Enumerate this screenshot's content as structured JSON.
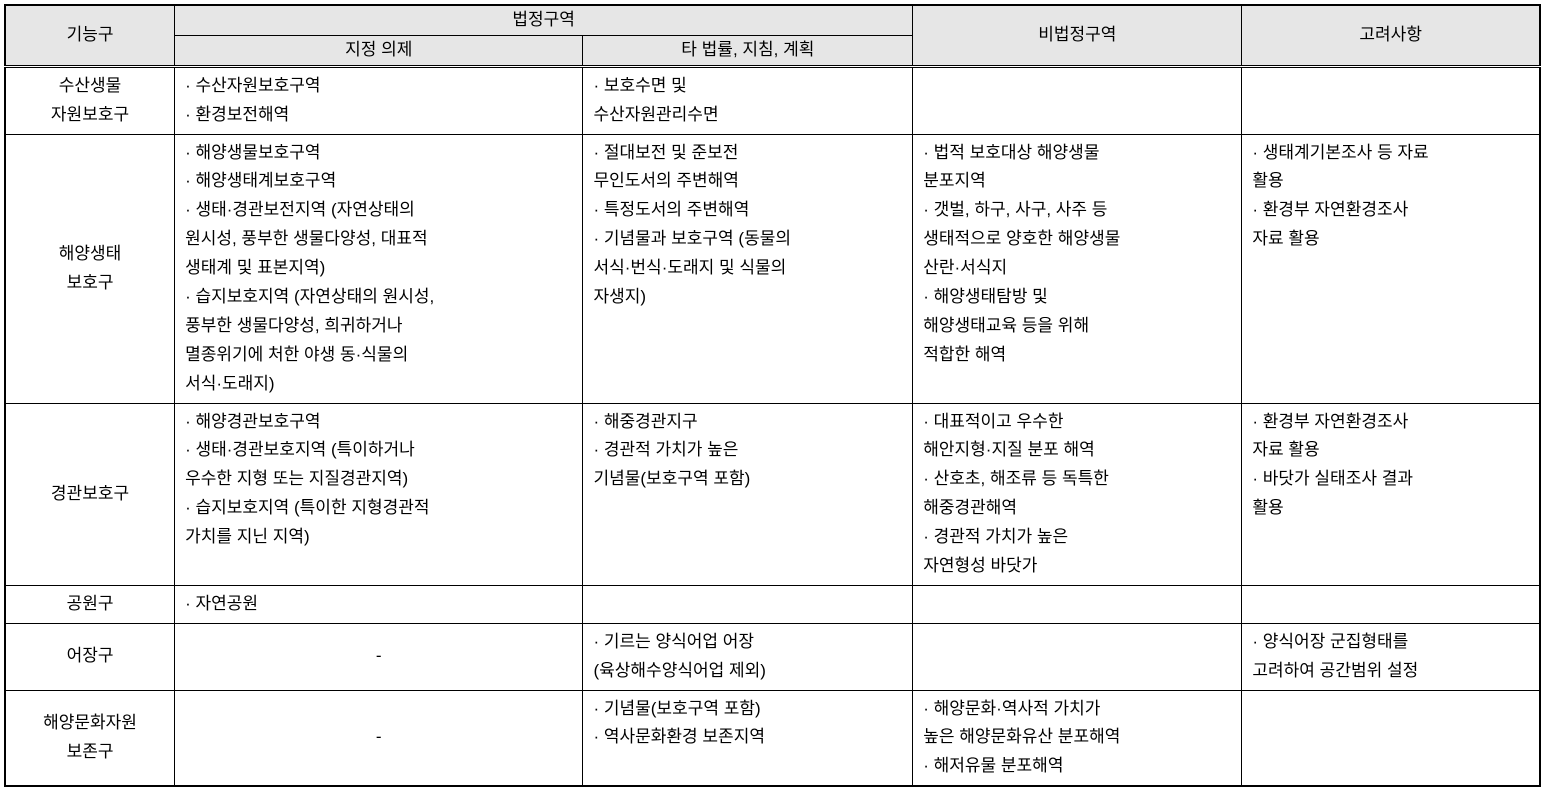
{
  "table": {
    "header": {
      "col1": "기능구",
      "col2_group": "법정구역",
      "col2a": "지정 의제",
      "col2b": "타 법률, 지침, 계획",
      "col3": "비법정구역",
      "col4": "고려사항"
    },
    "rows": {
      "row1": {
        "label": "수산생물\n자원보호구",
        "c1": "· 수산자원보호구역\n· 환경보전해역",
        "c2": "· 보호수면 및\n수산자원관리수면",
        "c3": "",
        "c4": ""
      },
      "row2": {
        "label": "해양생태\n보호구",
        "c1": "· 해양생물보호구역\n· 해양생태계보호구역\n· 생태·경관보전지역 (자연상태의\n  원시성, 풍부한 생물다양성, 대표적\n  생태계 및 표본지역)\n· 습지보호지역 (자연상태의 원시성,\n  풍부한 생물다양성, 희귀하거나\n  멸종위기에 처한 야생 동·식물의\n  서식·도래지)",
        "c2": "· 절대보전 및 준보전\n  무인도서의 주변해역\n· 특정도서의 주변해역\n· 기념물과 보호구역 (동물의\n  서식·번식·도래지 및 식물의\n  자생지)",
        "c3": "· 법적 보호대상 해양생물\n  분포지역\n· 갯벌, 하구, 사구, 사주 등\n  생태적으로 양호한 해양생물\n  산란·서식지\n· 해양생태탐방 및\n  해양생태교육 등을 위해\n  적합한 해역",
        "c4": "· 생태계기본조사 등 자료\n  활용\n· 환경부 자연환경조사\n  자료 활용"
      },
      "row3": {
        "label": "경관보호구",
        "c1": "· 해양경관보호구역\n· 생태·경관보호지역 (특이하거나\n  우수한 지형 또는 지질경관지역)\n· 습지보호지역 (특이한 지형경관적\n  가치를 지닌 지역)",
        "c2": "· 해중경관지구\n· 경관적 가치가 높은\n  기념물(보호구역 포함)",
        "c3": "· 대표적이고 우수한\n  해안지형·지질 분포 해역\n· 산호초, 해조류 등 독특한\n  해중경관해역\n· 경관적 가치가 높은\n  자연형성 바닷가",
        "c4": "· 환경부 자연환경조사\n  자료 활용\n· 바닷가 실태조사 결과\n  활용"
      },
      "row4": {
        "label": "공원구",
        "c1": "· 자연공원",
        "c2": "",
        "c3": "",
        "c4": ""
      },
      "row5": {
        "label": "어장구",
        "c1": "-",
        "c2": "· 기르는 양식어업 어장\n(육상해수양식어업 제외)",
        "c3": "",
        "c4": "· 양식어장 군집형태를\n고려하여 공간범위 설정"
      },
      "row6": {
        "label": "해양문화자원\n보존구",
        "c1": "-",
        "c2": "· 기념물(보호구역 포함)\n· 역사문화환경 보존지역",
        "c3": "· 해양문화·역사적 가치가\n  높은 해양문화유산 분포해역\n· 해저유물 분포해역",
        "c4": ""
      }
    }
  },
  "styling": {
    "header_bg": "#e6e6e6",
    "border_color": "#000000",
    "font_size": 17,
    "font_family": "Malgun Gothic"
  }
}
